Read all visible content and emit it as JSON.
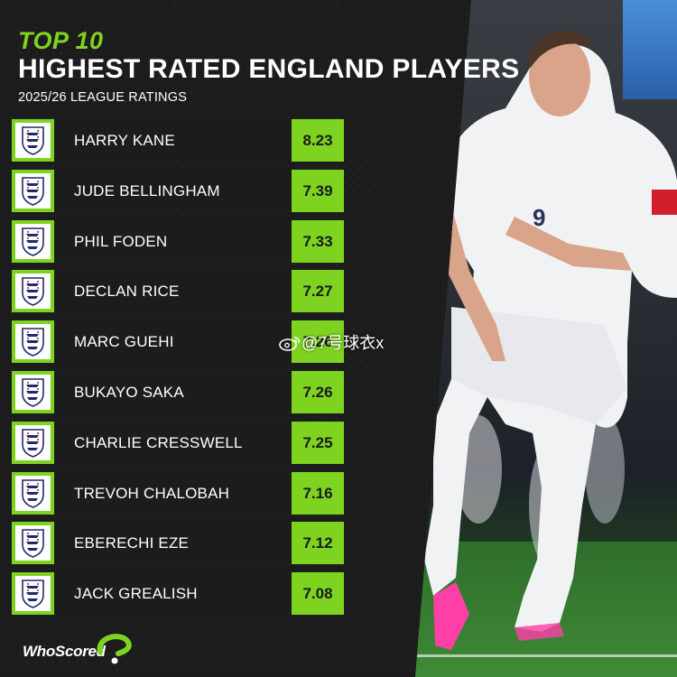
{
  "header": {
    "top_label": "TOP 10",
    "title": "HIGHEST RATED ENGLAND PLAYERS",
    "subtitle": "2025/26 LEAGUE RATINGS"
  },
  "players": [
    {
      "rank": 1,
      "name": "HARRY KANE",
      "rating": "8.23"
    },
    {
      "rank": 2,
      "name": "JUDE BELLINGHAM",
      "rating": "7.39"
    },
    {
      "rank": 3,
      "name": "PHIL FODEN",
      "rating": "7.33"
    },
    {
      "rank": 4,
      "name": "DECLAN RICE",
      "rating": "7.27"
    },
    {
      "rank": 5,
      "name": "MARC GUEHI",
      "rating": "7.26"
    },
    {
      "rank": 6,
      "name": "BUKAYO SAKA",
      "rating": "7.26"
    },
    {
      "rank": 7,
      "name": "CHARLIE CRESSWELL",
      "rating": "7.25"
    },
    {
      "rank": 8,
      "name": "TREVOH CHALOBAH",
      "rating": "7.16"
    },
    {
      "rank": 9,
      "name": "EBERECHI EZE",
      "rating": "7.12"
    },
    {
      "rank": 10,
      "name": "JACK GREALISH",
      "rating": "7.08"
    }
  ],
  "branding": {
    "logo_text": "WhoScored"
  },
  "watermark": {
    "text": "@7号球衣x",
    "icon": "weibo-icon"
  },
  "colors": {
    "accent": "#7ed321",
    "background": "#1c1c1c",
    "text": "#ffffff"
  },
  "icons": {
    "crest": "england-crest-icon",
    "logo_mark": "whoscored-mark-icon"
  }
}
